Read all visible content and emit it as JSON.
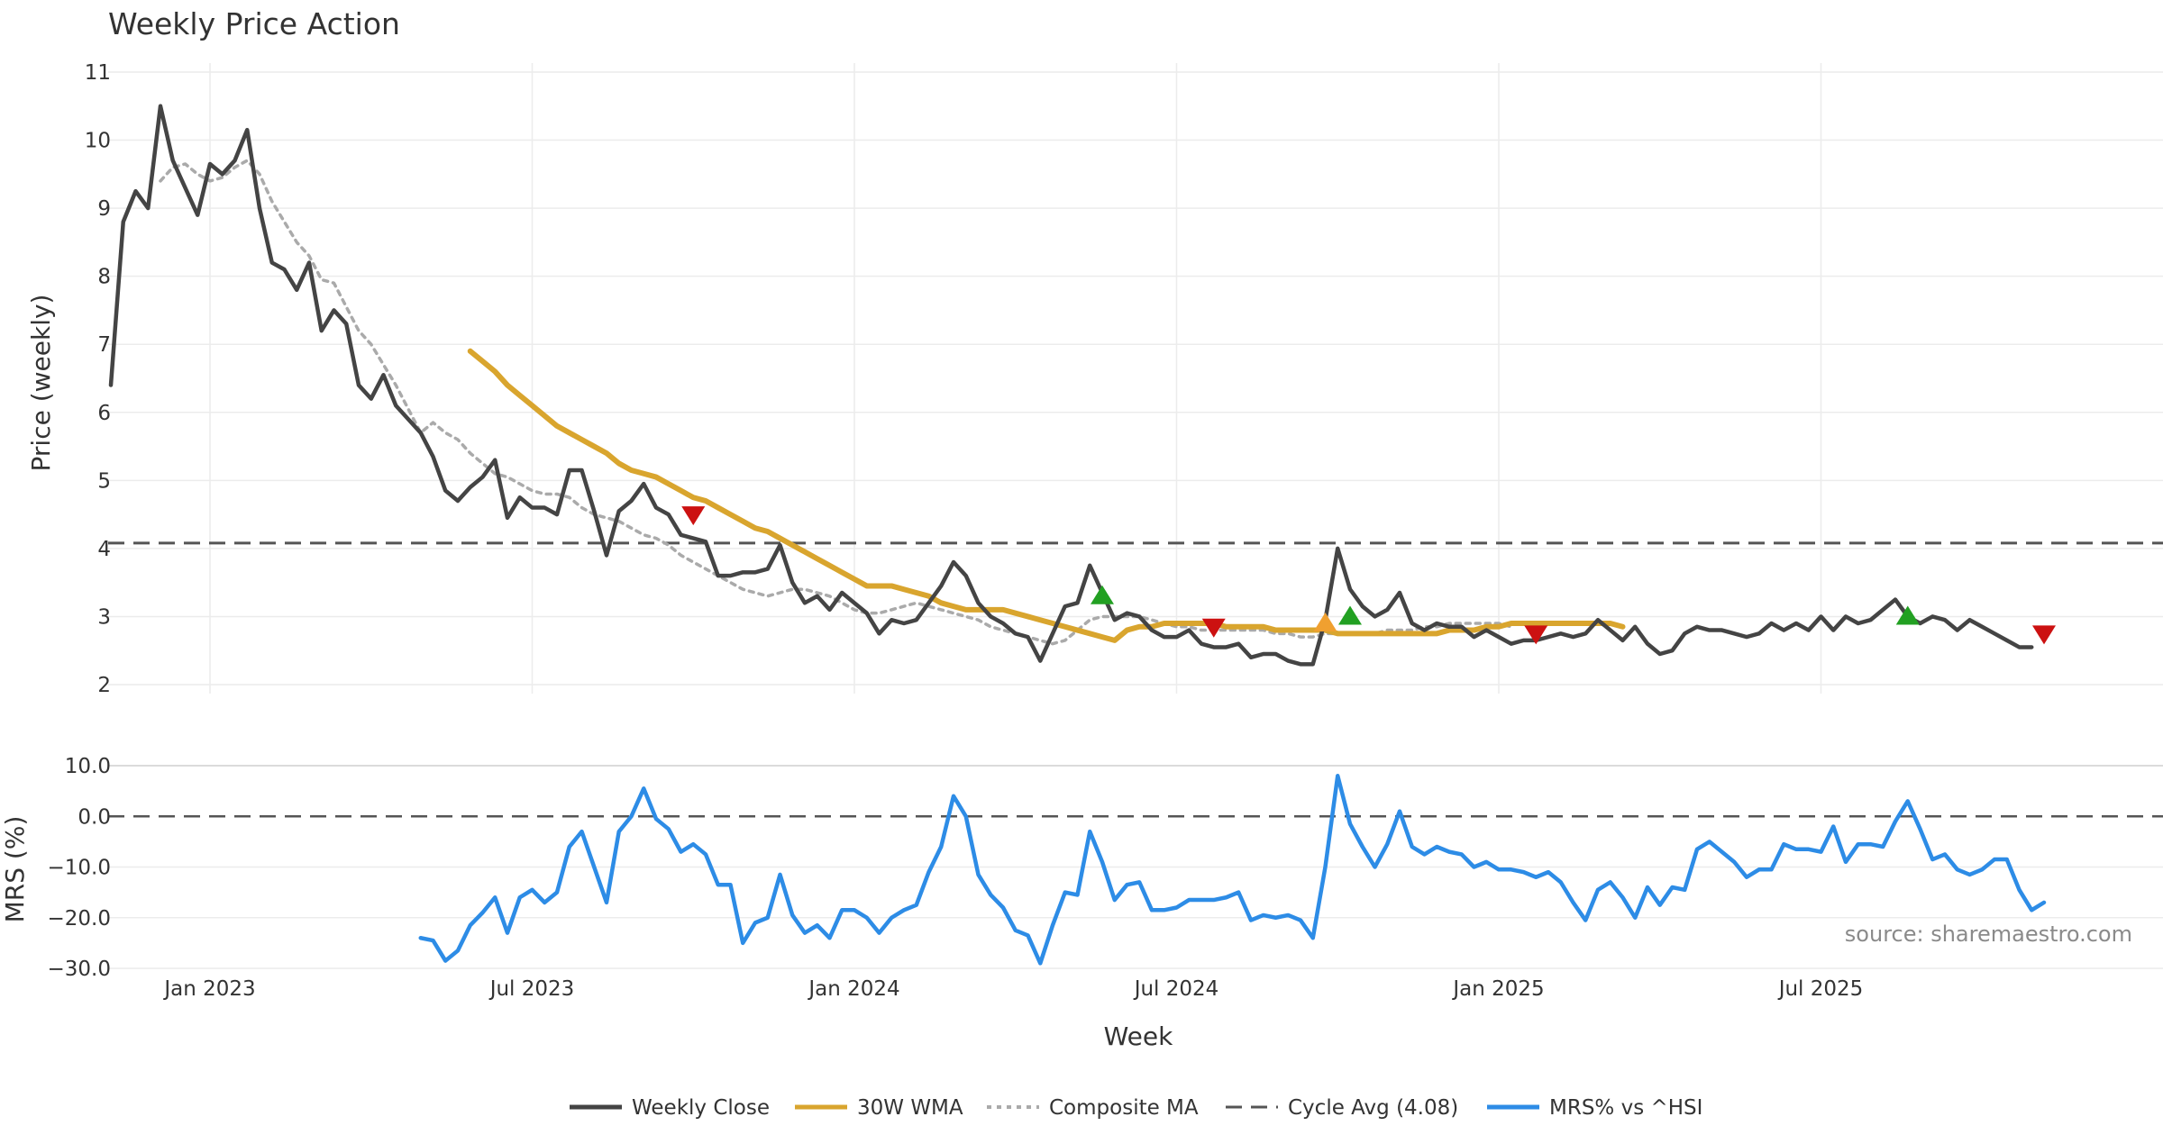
{
  "chart_data": {
    "type": "line",
    "title": "Weekly Price Action",
    "source": "source: sharemaestro.com",
    "colors": {
      "close": "#444444",
      "wma": "#D9A52E",
      "composite": "#AAAAAA",
      "cycle": "#555555",
      "mrs": "#2D8CE6",
      "buy": "#22A022",
      "sell": "#CC1111",
      "neutral": "#F0A030"
    },
    "x_ticks": [
      {
        "label": "Jan 2023",
        "x": 0
      },
      {
        "label": "Jul 2023",
        "x": 26
      },
      {
        "label": "Jan 2024",
        "x": 52
      },
      {
        "label": "Jul 2024",
        "x": 78
      },
      {
        "label": "Jan 2025",
        "x": 104
      },
      {
        "label": "Jul 2025",
        "x": 130
      }
    ],
    "xlabel": "Week",
    "price_panel": {
      "ylabel": "Price (weekly)",
      "ylim": [
        2,
        11
      ],
      "yticks": [
        2,
        3,
        4,
        5,
        6,
        7,
        8,
        9,
        10,
        11
      ],
      "series": [
        {
          "name": "Weekly Close",
          "x_start": -8,
          "values": [
            6.4,
            8.8,
            9.25,
            9.0,
            10.5,
            9.7,
            9.3,
            8.9,
            9.65,
            9.5,
            9.7,
            10.15,
            9.0,
            8.2,
            8.1,
            7.8,
            8.2,
            7.2,
            7.5,
            7.3,
            6.4,
            6.2,
            6.55,
            6.1,
            5.9,
            5.7,
            5.35,
            4.85,
            4.7,
            4.9,
            5.05,
            5.3,
            4.45,
            4.75,
            4.6,
            4.6,
            4.5,
            5.15,
            5.15,
            4.55,
            3.9,
            4.55,
            4.7,
            4.95,
            4.6,
            4.5,
            4.2,
            4.15,
            4.1,
            3.6,
            3.6,
            3.65,
            3.65,
            3.7,
            4.05,
            3.5,
            3.2,
            3.3,
            3.1,
            3.35,
            3.2,
            3.05,
            2.75,
            2.95,
            2.9,
            2.95,
            3.2,
            3.45,
            3.8,
            3.6,
            3.2,
            3.0,
            2.9,
            2.75,
            2.7,
            2.35,
            2.75,
            3.15,
            3.2,
            3.75,
            3.35,
            2.95,
            3.05,
            3.0,
            2.8,
            2.7,
            2.7,
            2.8,
            2.6,
            2.55,
            2.55,
            2.6,
            2.4,
            2.45,
            2.45,
            2.35,
            2.3,
            2.3,
            2.95,
            4.0,
            3.4,
            3.15,
            3.0,
            3.1,
            3.35,
            2.9,
            2.8,
            2.9,
            2.85,
            2.85,
            2.7,
            2.8,
            2.7,
            2.6,
            2.65,
            2.65,
            2.7,
            2.75,
            2.7,
            2.75,
            2.95,
            2.8,
            2.65,
            2.85,
            2.6,
            2.45,
            2.5,
            2.75,
            2.85,
            2.8,
            2.8,
            2.75,
            2.7,
            2.75,
            2.9,
            2.8,
            2.9,
            2.8,
            3.0,
            2.8,
            3.0,
            2.9,
            2.95,
            3.1,
            3.25,
            3.0,
            2.9,
            3.0,
            2.95,
            2.8,
            2.95,
            2.85,
            2.75,
            2.65,
            2.55,
            2.55
          ]
        },
        {
          "name": "30W WMA",
          "x_start": 21,
          "values": [
            6.9,
            6.75,
            6.6,
            6.4,
            6.25,
            6.1,
            5.95,
            5.8,
            5.7,
            5.6,
            5.5,
            5.4,
            5.25,
            5.15,
            5.1,
            5.05,
            4.95,
            4.85,
            4.75,
            4.7,
            4.6,
            4.5,
            4.4,
            4.3,
            4.25,
            4.15,
            4.05,
            3.95,
            3.85,
            3.75,
            3.65,
            3.55,
            3.45,
            3.45,
            3.45,
            3.4,
            3.35,
            3.3,
            3.2,
            3.15,
            3.1,
            3.1,
            3.1,
            3.1,
            3.05,
            3.0,
            2.95,
            2.9,
            2.85,
            2.8,
            2.75,
            2.7,
            2.65,
            2.8,
            2.85,
            2.85,
            2.9,
            2.9,
            2.9,
            2.9,
            2.9,
            2.85,
            2.85,
            2.85,
            2.85,
            2.8,
            2.8,
            2.8,
            2.8,
            2.8,
            2.75,
            2.75,
            2.75,
            2.75,
            2.75,
            2.75,
            2.75,
            2.75,
            2.75,
            2.8,
            2.8,
            2.8,
            2.85,
            2.85,
            2.9,
            2.9,
            2.9,
            2.9,
            2.9,
            2.9,
            2.9,
            2.9,
            2.9,
            2.85
          ]
        },
        {
          "name": "Composite MA",
          "x_start": -4,
          "values": [
            9.4,
            9.6,
            9.65,
            9.5,
            9.4,
            9.45,
            9.6,
            9.7,
            9.5,
            9.1,
            8.8,
            8.5,
            8.3,
            7.95,
            7.9,
            7.55,
            7.2,
            7.0,
            6.7,
            6.4,
            6.05,
            5.7,
            5.85,
            5.7,
            5.6,
            5.4,
            5.25,
            5.1,
            5.05,
            4.95,
            4.85,
            4.8,
            4.8,
            4.75,
            4.6,
            4.5,
            4.45,
            4.4,
            4.3,
            4.2,
            4.15,
            4.05,
            3.9,
            3.8,
            3.7,
            3.6,
            3.5,
            3.4,
            3.35,
            3.3,
            3.35,
            3.4,
            3.4,
            3.35,
            3.3,
            3.2,
            3.1,
            3.05,
            3.05,
            3.1,
            3.15,
            3.2,
            3.15,
            3.1,
            3.05,
            3.0,
            2.95,
            2.85,
            2.8,
            2.75,
            2.7,
            2.65,
            2.6,
            2.65,
            2.8,
            2.95,
            3.0,
            3.0,
            3.0,
            3.0,
            2.95,
            2.9,
            2.85,
            2.85,
            2.8,
            2.8,
            2.8,
            2.8,
            2.8,
            2.8,
            2.75,
            2.75,
            2.7,
            2.7,
            2.75,
            2.75,
            2.75,
            2.75,
            2.75,
            2.8,
            2.8,
            2.8,
            2.85,
            2.85,
            2.9,
            2.9,
            2.9,
            2.9,
            2.9,
            2.85
          ]
        }
      ],
      "cycle_avg": {
        "name": "Cycle Avg (4.08)",
        "value": 4.08
      },
      "markers": [
        {
          "type": "sell",
          "x": 39,
          "y": 4.5
        },
        {
          "type": "buy",
          "x": 72,
          "y": 3.3
        },
        {
          "type": "sell",
          "x": 81,
          "y": 2.85
        },
        {
          "type": "neutral",
          "x": 90,
          "y": 2.9
        },
        {
          "type": "buy",
          "x": 92,
          "y": 3.0
        },
        {
          "type": "sell",
          "x": 107,
          "y": 2.75
        },
        {
          "type": "buy",
          "x": 137,
          "y": 3.0
        },
        {
          "type": "sell",
          "x": 148,
          "y": 2.75
        }
      ]
    },
    "mrs_panel": {
      "ylabel": "MRS (%)",
      "ylim": [
        -30,
        10
      ],
      "yticks": [
        -30,
        -20,
        -10,
        0,
        10
      ],
      "ytick_labels": [
        "−30.0",
        "−20.0",
        "−10.0",
        "0.0",
        "10.0"
      ],
      "series": [
        {
          "name": "MRS% vs ^HSI",
          "x_start": 17,
          "values": [
            -24,
            -24.5,
            -28.5,
            -26.5,
            -21.5,
            -19,
            -16,
            -23,
            -16,
            -14.5,
            -17,
            -15,
            -6,
            -3,
            -10,
            -17,
            -3,
            0,
            5.5,
            -0.5,
            -2.5,
            -7,
            -5.5,
            -7.5,
            -13.5,
            -13.5,
            -25,
            -21,
            -20,
            -11.5,
            -19.5,
            -23,
            -21.5,
            -24,
            -18.5,
            -18.5,
            -20,
            -23,
            -20,
            -18.5,
            -17.5,
            -11,
            -6,
            4,
            0,
            -11.5,
            -15.5,
            -18,
            -22.5,
            -23.5,
            -29,
            -21.5,
            -15,
            -15.5,
            -3,
            -9,
            -16.5,
            -13.5,
            -13,
            -18.5,
            -18.5,
            -18,
            -16.5,
            -16.5,
            -16.5,
            -16,
            -15,
            -20.5,
            -19.5,
            -20,
            -19.5,
            -20.5,
            -24,
            -10,
            8,
            -1.5,
            -6,
            -10,
            -5.5,
            1,
            -6,
            -7.5,
            -6,
            -7,
            -7.5,
            -10,
            -9,
            -10.5,
            -10.5,
            -11,
            -12,
            -11,
            -13,
            -17,
            -20.5,
            -14.5,
            -13,
            -16,
            -20,
            -14,
            -17.5,
            -14,
            -14.5,
            -6.5,
            -5,
            -7,
            -9,
            -12,
            -10.5,
            -10.5,
            -5.5,
            -6.5,
            -6.5,
            -7,
            -2,
            -9,
            -5.5,
            -5.5,
            -6,
            -1,
            3,
            -2.5,
            -8.5,
            -7.5,
            -10.5,
            -11.5,
            -10.5,
            -8.5,
            -8.5,
            -14.5,
            -18.5,
            -17
          ]
        }
      ]
    },
    "legend": [
      "Weekly Close",
      "30W WMA",
      "Composite MA",
      "Cycle Avg (4.08)",
      "MRS% vs ^HSI"
    ]
  }
}
